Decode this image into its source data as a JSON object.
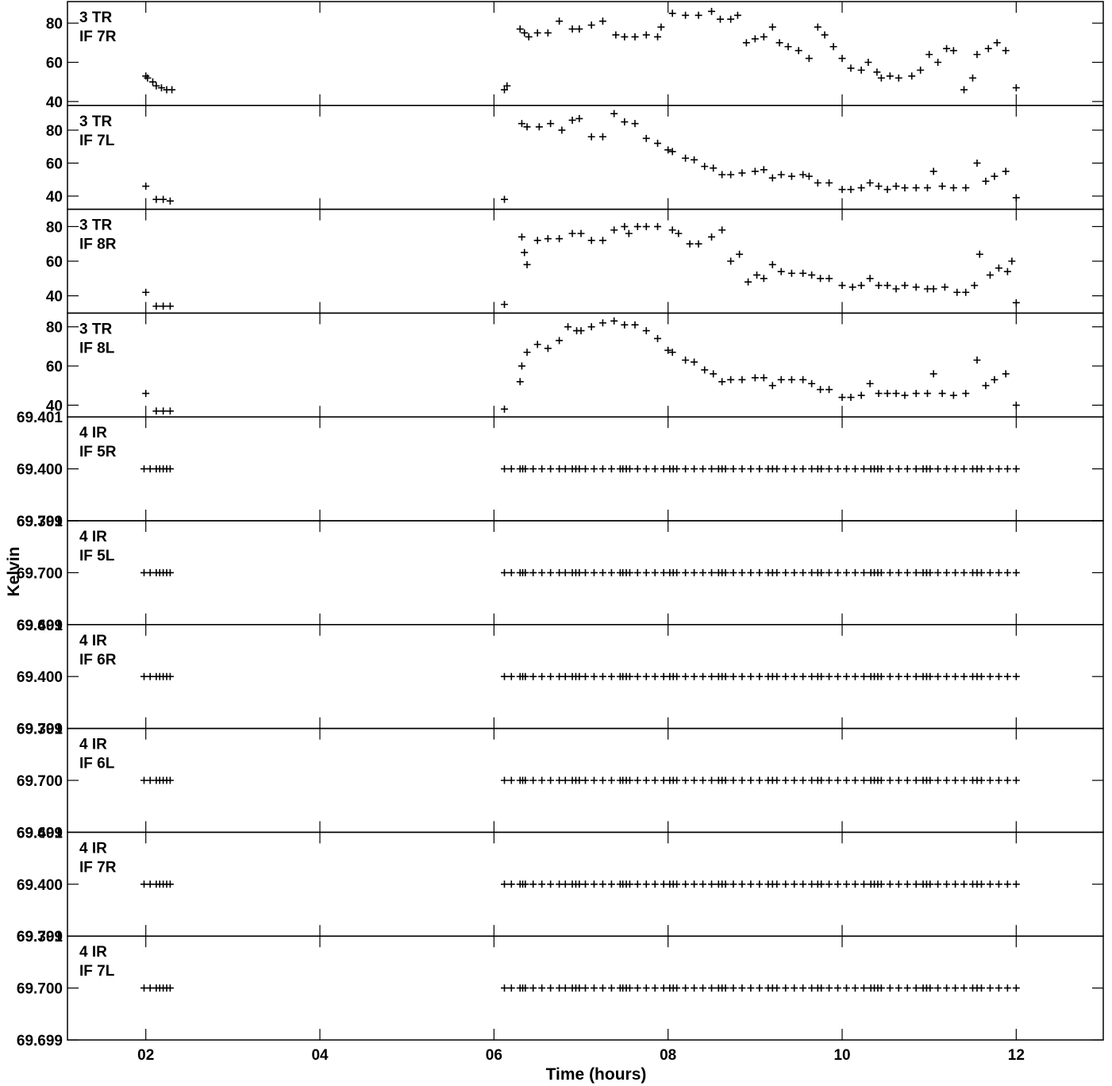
{
  "chart_data": {
    "type": "scatter",
    "marker": "+",
    "colors": {
      "marks": "#000000",
      "background": "#ffffff"
    },
    "xlabel": "Time (hours)",
    "ylabel": "Kelvin",
    "xlim": [
      1.1,
      13.0
    ],
    "x_tick_values": [
      2,
      4,
      6,
      8,
      10,
      12
    ],
    "x_tick_labels": [
      "02",
      "04",
      "06",
      "08",
      "10",
      "12"
    ],
    "grid": false,
    "panels": [
      {
        "label_line1": "3 TR",
        "label_line2": "IF 7R",
        "ylim": [
          38,
          91
        ],
        "y_ticks": [
          {
            "v": 40,
            "t": "40"
          },
          {
            "v": 60,
            "t": "60"
          },
          {
            "v": 80,
            "t": "80"
          }
        ],
        "points": [
          [
            2.0,
            53
          ],
          [
            2.02,
            52
          ],
          [
            2.08,
            50
          ],
          [
            2.12,
            48
          ],
          [
            2.18,
            47
          ],
          [
            2.24,
            46
          ],
          [
            2.3,
            46
          ],
          [
            6.12,
            46
          ],
          [
            6.15,
            48
          ],
          [
            6.3,
            77
          ],
          [
            6.35,
            75
          ],
          [
            6.4,
            73
          ],
          [
            6.5,
            75
          ],
          [
            6.62,
            75
          ],
          [
            6.75,
            81
          ],
          [
            6.9,
            77
          ],
          [
            6.98,
            77
          ],
          [
            7.12,
            79
          ],
          [
            7.25,
            81
          ],
          [
            7.4,
            74
          ],
          [
            7.5,
            73
          ],
          [
            7.62,
            73
          ],
          [
            7.75,
            74
          ],
          [
            7.88,
            73
          ],
          [
            7.92,
            78
          ],
          [
            8.05,
            85
          ],
          [
            8.2,
            84
          ],
          [
            8.35,
            84
          ],
          [
            8.5,
            86
          ],
          [
            8.6,
            82
          ],
          [
            8.72,
            82
          ],
          [
            8.8,
            84
          ],
          [
            8.9,
            70
          ],
          [
            9.0,
            72
          ],
          [
            9.1,
            73
          ],
          [
            9.2,
            78
          ],
          [
            9.28,
            70
          ],
          [
            9.38,
            68
          ],
          [
            9.5,
            66
          ],
          [
            9.62,
            62
          ],
          [
            9.72,
            78
          ],
          [
            9.8,
            74
          ],
          [
            9.9,
            68
          ],
          [
            10.0,
            62
          ],
          [
            10.1,
            57
          ],
          [
            10.22,
            56
          ],
          [
            10.3,
            60
          ],
          [
            10.4,
            55
          ],
          [
            10.45,
            52
          ],
          [
            10.55,
            53
          ],
          [
            10.65,
            52
          ],
          [
            10.8,
            53
          ],
          [
            10.9,
            56
          ],
          [
            11.0,
            64
          ],
          [
            11.1,
            60
          ],
          [
            11.2,
            67
          ],
          [
            11.28,
            66
          ],
          [
            11.4,
            46
          ],
          [
            11.5,
            52
          ],
          [
            11.55,
            64
          ],
          [
            11.68,
            67
          ],
          [
            11.78,
            70
          ],
          [
            11.88,
            66
          ],
          [
            12.0,
            47
          ]
        ]
      },
      {
        "label_line1": "3 TR",
        "label_line2": "IF 7L",
        "ylim": [
          32,
          95
        ],
        "y_ticks": [
          {
            "v": 40,
            "t": "40"
          },
          {
            "v": 60,
            "t": "60"
          },
          {
            "v": 80,
            "t": "80"
          }
        ],
        "points": [
          [
            2.0,
            46
          ],
          [
            2.12,
            38
          ],
          [
            2.2,
            38
          ],
          [
            2.28,
            37
          ],
          [
            6.12,
            38
          ],
          [
            6.32,
            84
          ],
          [
            6.38,
            82
          ],
          [
            6.52,
            82
          ],
          [
            6.65,
            84
          ],
          [
            6.78,
            80
          ],
          [
            6.9,
            86
          ],
          [
            6.98,
            87
          ],
          [
            7.12,
            76
          ],
          [
            7.25,
            76
          ],
          [
            7.38,
            90
          ],
          [
            7.5,
            85
          ],
          [
            7.62,
            84
          ],
          [
            7.75,
            75
          ],
          [
            7.88,
            72
          ],
          [
            8.0,
            68
          ],
          [
            8.05,
            67
          ],
          [
            8.2,
            63
          ],
          [
            8.3,
            62
          ],
          [
            8.42,
            58
          ],
          [
            8.52,
            57
          ],
          [
            8.62,
            53
          ],
          [
            8.72,
            53
          ],
          [
            8.85,
            54
          ],
          [
            9.0,
            55
          ],
          [
            9.1,
            56
          ],
          [
            9.2,
            51
          ],
          [
            9.3,
            53
          ],
          [
            9.42,
            52
          ],
          [
            9.55,
            53
          ],
          [
            9.62,
            52
          ],
          [
            9.72,
            48
          ],
          [
            9.85,
            48
          ],
          [
            10.0,
            44
          ],
          [
            10.1,
            44
          ],
          [
            10.22,
            45
          ],
          [
            10.32,
            48
          ],
          [
            10.42,
            46
          ],
          [
            10.52,
            44
          ],
          [
            10.62,
            46
          ],
          [
            10.72,
            45
          ],
          [
            10.85,
            45
          ],
          [
            10.98,
            45
          ],
          [
            11.05,
            55
          ],
          [
            11.15,
            46
          ],
          [
            11.28,
            45
          ],
          [
            11.42,
            45
          ],
          [
            11.55,
            60
          ],
          [
            11.65,
            49
          ],
          [
            11.75,
            52
          ],
          [
            11.88,
            55
          ],
          [
            12.0,
            39
          ]
        ]
      },
      {
        "label_line1": "3 TR",
        "label_line2": "IF 8R",
        "ylim": [
          30,
          90
        ],
        "y_ticks": [
          {
            "v": 40,
            "t": "40"
          },
          {
            "v": 60,
            "t": "60"
          },
          {
            "v": 80,
            "t": "80"
          }
        ],
        "points": [
          [
            2.0,
            42
          ],
          [
            2.12,
            34
          ],
          [
            2.2,
            34
          ],
          [
            2.28,
            34
          ],
          [
            6.12,
            35
          ],
          [
            6.32,
            74
          ],
          [
            6.35,
            65
          ],
          [
            6.38,
            58
          ],
          [
            6.5,
            72
          ],
          [
            6.62,
            73
          ],
          [
            6.75,
            73
          ],
          [
            6.9,
            76
          ],
          [
            7.0,
            76
          ],
          [
            7.12,
            72
          ],
          [
            7.25,
            72
          ],
          [
            7.38,
            78
          ],
          [
            7.5,
            80
          ],
          [
            7.55,
            76
          ],
          [
            7.65,
            80
          ],
          [
            7.75,
            80
          ],
          [
            7.88,
            80
          ],
          [
            8.05,
            78
          ],
          [
            8.12,
            76
          ],
          [
            8.25,
            70
          ],
          [
            8.35,
            70
          ],
          [
            8.5,
            74
          ],
          [
            8.62,
            78
          ],
          [
            8.72,
            60
          ],
          [
            8.82,
            64
          ],
          [
            8.92,
            48
          ],
          [
            9.02,
            52
          ],
          [
            9.1,
            50
          ],
          [
            9.2,
            58
          ],
          [
            9.3,
            54
          ],
          [
            9.42,
            53
          ],
          [
            9.55,
            53
          ],
          [
            9.65,
            52
          ],
          [
            9.75,
            50
          ],
          [
            9.85,
            50
          ],
          [
            10.0,
            46
          ],
          [
            10.12,
            45
          ],
          [
            10.22,
            46
          ],
          [
            10.32,
            50
          ],
          [
            10.42,
            46
          ],
          [
            10.52,
            46
          ],
          [
            10.62,
            44
          ],
          [
            10.72,
            46
          ],
          [
            10.85,
            45
          ],
          [
            10.98,
            44
          ],
          [
            11.05,
            44
          ],
          [
            11.18,
            45
          ],
          [
            11.32,
            42
          ],
          [
            11.42,
            42
          ],
          [
            11.52,
            46
          ],
          [
            11.58,
            64
          ],
          [
            11.7,
            52
          ],
          [
            11.8,
            56
          ],
          [
            11.9,
            54
          ],
          [
            11.95,
            60
          ],
          [
            12.0,
            36
          ]
        ]
      },
      {
        "label_line1": "3 TR",
        "label_line2": "IF 8L",
        "ylim": [
          34,
          87
        ],
        "y_ticks": [
          {
            "v": 40,
            "t": "40"
          },
          {
            "v": 60,
            "t": "60"
          },
          {
            "v": 80,
            "t": "80"
          }
        ],
        "points": [
          [
            2.0,
            46
          ],
          [
            2.12,
            37
          ],
          [
            2.2,
            37
          ],
          [
            2.28,
            37
          ],
          [
            6.12,
            38
          ],
          [
            6.3,
            52
          ],
          [
            6.32,
            60
          ],
          [
            6.38,
            67
          ],
          [
            6.5,
            71
          ],
          [
            6.62,
            69
          ],
          [
            6.75,
            73
          ],
          [
            6.85,
            80
          ],
          [
            6.95,
            78
          ],
          [
            7.0,
            78
          ],
          [
            7.12,
            80
          ],
          [
            7.25,
            82
          ],
          [
            7.38,
            83
          ],
          [
            7.5,
            81
          ],
          [
            7.62,
            81
          ],
          [
            7.75,
            78
          ],
          [
            7.88,
            74
          ],
          [
            8.0,
            68
          ],
          [
            8.05,
            67
          ],
          [
            8.2,
            63
          ],
          [
            8.3,
            62
          ],
          [
            8.42,
            58
          ],
          [
            8.52,
            56
          ],
          [
            8.62,
            52
          ],
          [
            8.72,
            53
          ],
          [
            8.85,
            53
          ],
          [
            9.0,
            54
          ],
          [
            9.1,
            54
          ],
          [
            9.2,
            50
          ],
          [
            9.3,
            53
          ],
          [
            9.42,
            53
          ],
          [
            9.55,
            53
          ],
          [
            9.65,
            51
          ],
          [
            9.75,
            48
          ],
          [
            9.85,
            48
          ],
          [
            10.0,
            44
          ],
          [
            10.1,
            44
          ],
          [
            10.22,
            45
          ],
          [
            10.32,
            51
          ],
          [
            10.42,
            46
          ],
          [
            10.52,
            46
          ],
          [
            10.62,
            46
          ],
          [
            10.72,
            45
          ],
          [
            10.85,
            46
          ],
          [
            10.98,
            46
          ],
          [
            11.05,
            56
          ],
          [
            11.15,
            46
          ],
          [
            11.28,
            45
          ],
          [
            11.42,
            46
          ],
          [
            11.55,
            63
          ],
          [
            11.65,
            50
          ],
          [
            11.75,
            53
          ],
          [
            11.88,
            56
          ],
          [
            12.0,
            40
          ]
        ]
      },
      {
        "label_line1": "4 IR",
        "label_line2": "IF 5R",
        "ylim": [
          69.399,
          69.401
        ],
        "value": 69.4,
        "y_ticks": [
          {
            "v": 69.401,
            "t": "69.401"
          },
          {
            "v": 69.4,
            "t": "69.400"
          },
          {
            "v": 69.399,
            "t": "69.399"
          }
        ]
      },
      {
        "label_line1": "4 IR",
        "label_line2": "IF 5L",
        "ylim": [
          69.699,
          69.701
        ],
        "value": 69.7,
        "y_ticks": [
          {
            "v": 69.701,
            "t": "69.701"
          },
          {
            "v": 69.7,
            "t": "69.700"
          },
          {
            "v": 69.699,
            "t": "69.699"
          }
        ]
      },
      {
        "label_line1": "4 IR",
        "label_line2": "IF 6R",
        "ylim": [
          69.399,
          69.401
        ],
        "value": 69.4,
        "y_ticks": [
          {
            "v": 69.401,
            "t": "69.401"
          },
          {
            "v": 69.4,
            "t": "69.400"
          },
          {
            "v": 69.399,
            "t": "69.399"
          }
        ]
      },
      {
        "label_line1": "4 IR",
        "label_line2": "IF 6L",
        "ylim": [
          69.699,
          69.701
        ],
        "value": 69.7,
        "y_ticks": [
          {
            "v": 69.701,
            "t": "69.701"
          },
          {
            "v": 69.7,
            "t": "69.700"
          },
          {
            "v": 69.699,
            "t": "69.699"
          }
        ]
      },
      {
        "label_line1": "4 IR",
        "label_line2": "IF 7R",
        "ylim": [
          69.399,
          69.401
        ],
        "value": 69.4,
        "y_ticks": [
          {
            "v": 69.401,
            "t": "69.401"
          },
          {
            "v": 69.4,
            "t": "69.400"
          },
          {
            "v": 69.399,
            "t": "69.399"
          }
        ]
      },
      {
        "label_line1": "4 IR",
        "label_line2": "IF 7L",
        "ylim": [
          69.699,
          69.701
        ],
        "value": 69.7,
        "y_ticks": [
          {
            "v": 69.701,
            "t": "69.701"
          },
          {
            "v": 69.7,
            "t": "69.700"
          },
          {
            "v": 69.699,
            "t": "69.699"
          }
        ]
      }
    ],
    "constant_panel_times": [
      1.98,
      2.05,
      2.12,
      2.16,
      2.2,
      2.24,
      2.28,
      6.12,
      6.2,
      6.3,
      6.33,
      6.36,
      6.45,
      6.55,
      6.65,
      6.75,
      6.82,
      6.9,
      6.94,
      6.98,
      7.05,
      7.15,
      7.25,
      7.35,
      7.45,
      7.48,
      7.52,
      7.56,
      7.65,
      7.75,
      7.85,
      7.95,
      8.02,
      8.06,
      8.1,
      8.2,
      8.3,
      8.4,
      8.5,
      8.58,
      8.62,
      8.66,
      8.75,
      8.85,
      8.95,
      9.05,
      9.15,
      9.2,
      9.25,
      9.35,
      9.45,
      9.55,
      9.65,
      9.72,
      9.76,
      9.85,
      9.95,
      10.05,
      10.15,
      10.25,
      10.33,
      10.37,
      10.41,
      10.45,
      10.55,
      10.65,
      10.75,
      10.85,
      10.93,
      10.97,
      11.01,
      11.1,
      11.2,
      11.3,
      11.4,
      11.5,
      11.55,
      11.6,
      11.7,
      11.8,
      11.9,
      12.0
    ]
  }
}
